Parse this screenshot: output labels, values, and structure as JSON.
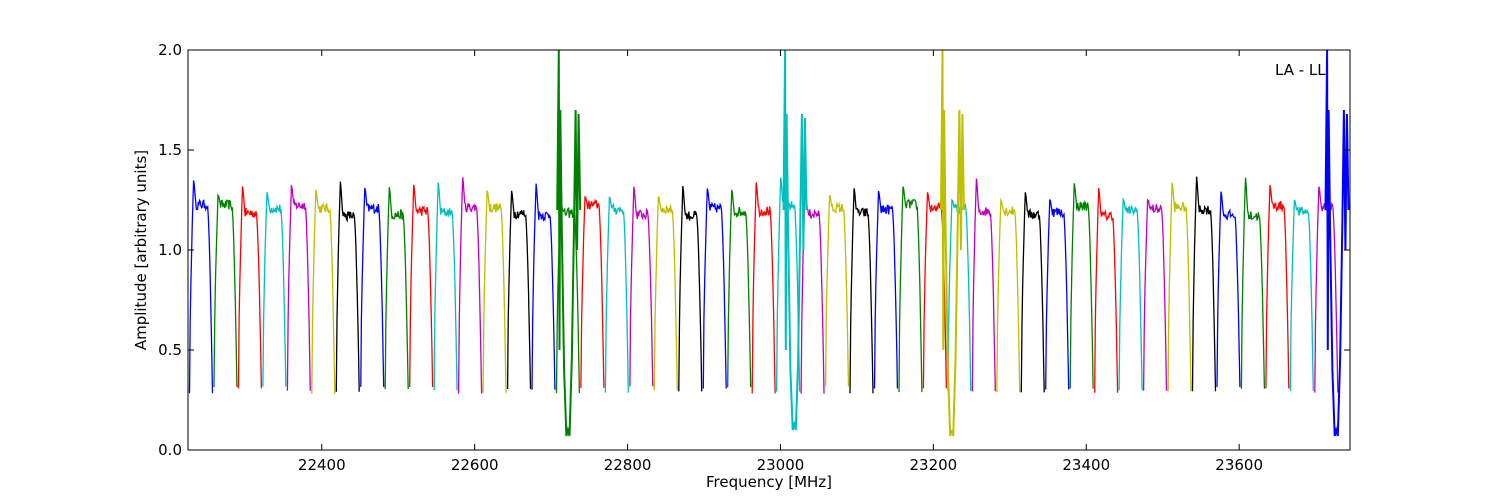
{
  "chart_data": {
    "type": "line",
    "title": "",
    "xlabel": "Frequency [MHz]",
    "ylabel": "Amplitude [arbitrary units]",
    "xlim": [
      22225,
      23745
    ],
    "ylim": [
      0.0,
      2.0
    ],
    "xticks": [
      22400,
      22600,
      22800,
      23000,
      23200,
      23400,
      23600
    ],
    "xtick_labels": [
      "22400",
      "22600",
      "22800",
      "23000",
      "23200",
      "23400",
      "23600"
    ],
    "yticks": [
      0.0,
      0.5,
      1.0,
      1.5,
      2.0
    ],
    "ytick_labels": [
      "0.0",
      "0.5",
      "1.0",
      "1.5",
      "2.0"
    ],
    "annotation": "LA - LL",
    "grid": false,
    "colors": [
      "#0000ff",
      "#008000",
      "#ff0000",
      "#00bfbf",
      "#bf00bf",
      "#bfbf00",
      "#000000"
    ],
    "band_start": 22227,
    "band_step": 32,
    "band_count": 47,
    "band_width": 30,
    "band_edge_min": 0.28,
    "band_plateau": 1.2,
    "band_peak": 1.32,
    "spikes": [
      {
        "x": 22722,
        "color": "#008000",
        "min": 0.07,
        "peak_left": 2.0,
        "peak_right": 1.7
      },
      {
        "x": 23018,
        "color": "#00bfbf",
        "min": 0.1,
        "peak_left": 2.0,
        "peak_right": 1.68
      },
      {
        "x": 23224,
        "color": "#bfbf00",
        "min": 0.07,
        "peak_left": 2.0,
        "peak_right": 1.7
      },
      {
        "x": 23727,
        "color": "#0000ff",
        "min": 0.07,
        "peak_left": 2.0,
        "peak_right": 1.7
      }
    ]
  }
}
